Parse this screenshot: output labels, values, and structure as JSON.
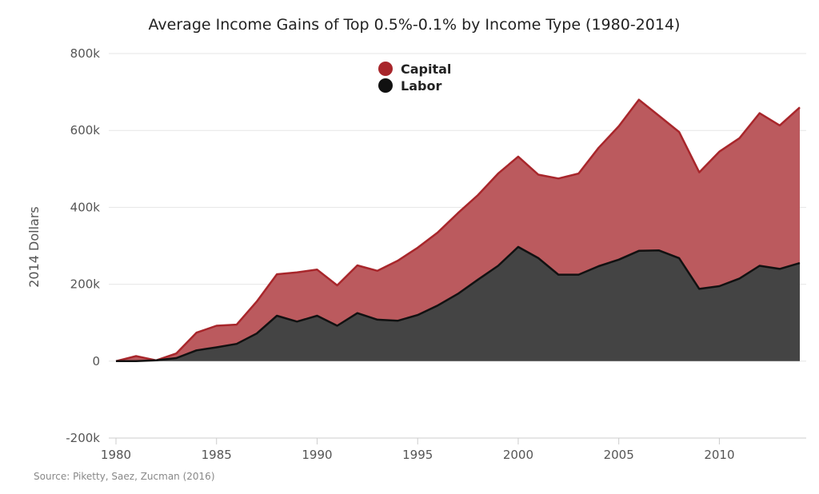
{
  "chart_data": {
    "type": "area",
    "stacked": true,
    "title": "Average Income Gains of Top 0.5%-0.1% by Income Type (1980-2014)",
    "xlabel": "",
    "ylabel": "2014 Dollars",
    "source": "Source: Piketty, Saez, Zucman (2016)",
    "xlim": [
      1980,
      2014
    ],
    "ylim": [
      -200000,
      800000
    ],
    "x_ticks": [
      "1980",
      "1985",
      "1990",
      "1995",
      "2000",
      "2005",
      "2010"
    ],
    "y_ticks": [
      "800k",
      "600k",
      "400k",
      "200k",
      "0",
      "-200k"
    ],
    "y_tick_values": [
      800000,
      600000,
      400000,
      200000,
      0,
      -200000
    ],
    "grid": true,
    "legend_position": "top-center",
    "x": [
      1980,
      1981,
      1982,
      1983,
      1984,
      1985,
      1986,
      1987,
      1988,
      1989,
      1990,
      1991,
      1992,
      1993,
      1994,
      1995,
      1996,
      1997,
      1998,
      1999,
      2000,
      2001,
      2002,
      2003,
      2004,
      2005,
      2006,
      2007,
      2008,
      2009,
      2010,
      2011,
      2012,
      2013,
      2014
    ],
    "series": [
      {
        "name": "Capital",
        "color": "#a8262b",
        "fill": "#bb5a5e",
        "values": [
          0,
          13000,
          0,
          12000,
          46000,
          56000,
          50000,
          83000,
          108000,
          128000,
          120000,
          105000,
          124000,
          127000,
          156000,
          175000,
          190000,
          210000,
          220000,
          240000,
          235000,
          217000,
          250000,
          263000,
          308000,
          347000,
          393000,
          350000,
          328000,
          303000,
          350000,
          365000,
          397000,
          373000,
          405000
        ]
      },
      {
        "name": "Labor",
        "color": "#111111",
        "fill": "#444444",
        "values": [
          0,
          0,
          2000,
          8000,
          28000,
          36000,
          45000,
          72000,
          118000,
          103000,
          118000,
          92000,
          125000,
          108000,
          105000,
          120000,
          145000,
          175000,
          212000,
          248000,
          297000,
          268000,
          225000,
          225000,
          247000,
          264000,
          287000,
          288000,
          268000,
          188000,
          195000,
          215000,
          248000,
          240000,
          255000
        ]
      }
    ]
  }
}
